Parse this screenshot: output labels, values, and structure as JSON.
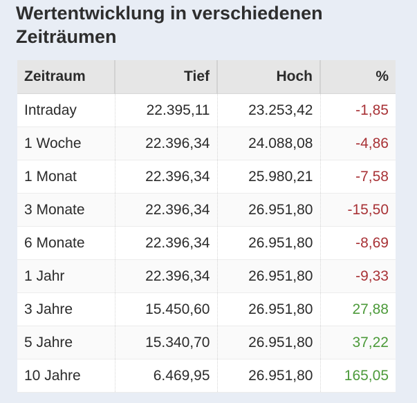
{
  "title": "Wertentwicklung in verschiedenen Zeiträumen",
  "colors": {
    "negative": "#a83236",
    "positive": "#4c9a3a",
    "background": "#e8edf5"
  },
  "columns": [
    "Zeitraum",
    "Tief",
    "Hoch",
    "%"
  ],
  "rows": [
    {
      "period": "Intraday",
      "low": "22.395,11",
      "high": "23.253,42",
      "pct": "-1,85"
    },
    {
      "period": "1 Woche",
      "low": "22.396,34",
      "high": "24.088,08",
      "pct": "-4,86"
    },
    {
      "period": "1 Monat",
      "low": "22.396,34",
      "high": "25.980,21",
      "pct": "-7,58"
    },
    {
      "period": "3 Monate",
      "low": "22.396,34",
      "high": "26.951,80",
      "pct": "-15,50"
    },
    {
      "period": "6 Monate",
      "low": "22.396,34",
      "high": "26.951,80",
      "pct": "-8,69"
    },
    {
      "period": "1 Jahr",
      "low": "22.396,34",
      "high": "26.951,80",
      "pct": "-9,33"
    },
    {
      "period": "3 Jahre",
      "low": "15.450,60",
      "high": "26.951,80",
      "pct": "27,88"
    },
    {
      "period": "5 Jahre",
      "low": "15.340,70",
      "high": "26.951,80",
      "pct": "37,22"
    },
    {
      "period": "10 Jahre",
      "low": "6.469,95",
      "high": "26.951,80",
      "pct": "165,05"
    }
  ]
}
